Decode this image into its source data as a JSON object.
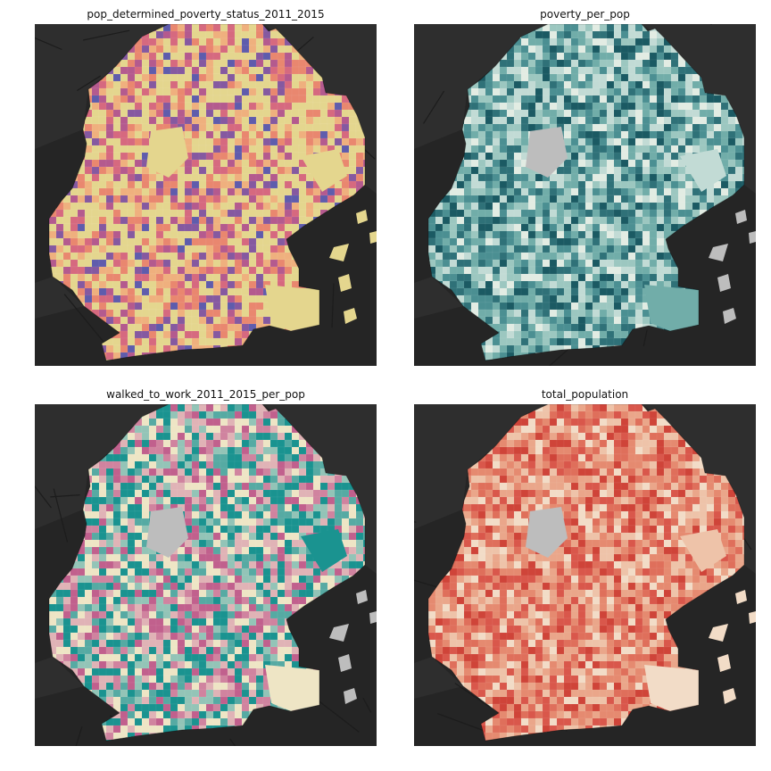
{
  "figure": {
    "panels": [
      {
        "title": "pop_determined_poverty_status_2011_2015",
        "colormap": "sunset (yellow to purple)",
        "palette": [
          "#e4d68e",
          "#efb07e",
          "#e9876f",
          "#d6697f",
          "#b45a8e",
          "#8559a0",
          "#5f5cac"
        ],
        "weights": [
          38,
          16,
          13,
          11,
          9,
          8,
          5
        ],
        "no_data_color": "#bdbdbd"
      },
      {
        "title": "poverty_per_pop",
        "colormap": "teal sequential",
        "palette": [
          "#e2ece3",
          "#c2dbd5",
          "#9cc7c0",
          "#71ada9",
          "#4b8f92",
          "#2f7178",
          "#1b5a63"
        ],
        "weights": [
          10,
          14,
          17,
          18,
          17,
          14,
          10
        ],
        "no_data_color": "#bdbdbd"
      },
      {
        "title": "walked_to_work_2011_2015_per_pop",
        "colormap": "tealrose diverging",
        "palette": [
          "#1a9390",
          "#56aaa3",
          "#93c4b7",
          "#eee5c5",
          "#e0b3b6",
          "#d0839f",
          "#c1608d"
        ],
        "weights": [
          20,
          13,
          12,
          18,
          13,
          12,
          12
        ],
        "no_data_color": "#bdbdbd"
      },
      {
        "title": "total_population",
        "colormap": "peach to red",
        "palette": [
          "#f2dcc7",
          "#eec3a9",
          "#eaa68a",
          "#e58a70",
          "#df6f5b",
          "#d9574b",
          "#cf4439"
        ],
        "weights": [
          10,
          14,
          16,
          17,
          16,
          15,
          12
        ],
        "no_data_color": "#bdbdbd"
      }
    ],
    "basemap": {
      "water_color": "#252525",
      "land_color": "#2e2e2e",
      "street_color": "#1c1c1c"
    }
  }
}
